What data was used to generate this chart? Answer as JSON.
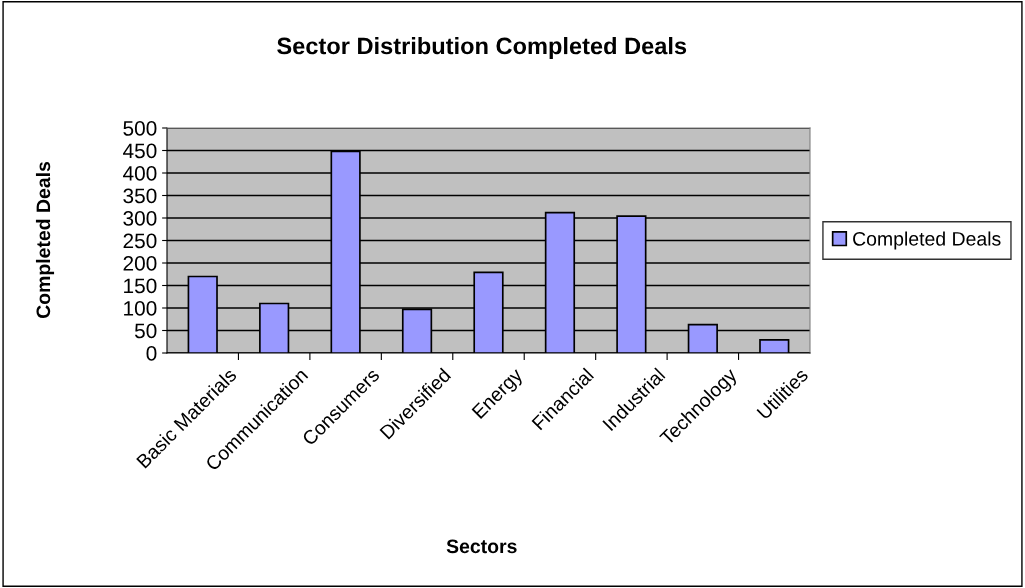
{
  "chart_data": {
    "type": "bar",
    "title": "Sector Distribution Completed Deals",
    "xlabel": "Sectors",
    "ylabel": "Completed Deals",
    "categories": [
      "Basic Materials",
      "Communication",
      "Consumers",
      "Diversified",
      "Energy",
      "Financial",
      "Industrial",
      "Technology",
      "Utilities"
    ],
    "series": [
      {
        "name": "Completed Deals",
        "color": "#9999ff",
        "values": [
          170,
          110,
          448,
          97,
          179,
          312,
          304,
          63,
          29
        ]
      }
    ],
    "ylim": [
      0,
      500
    ],
    "yticks": [
      0,
      50,
      100,
      150,
      200,
      250,
      300,
      350,
      400,
      450,
      500
    ],
    "grid": "y",
    "legend": "right"
  }
}
